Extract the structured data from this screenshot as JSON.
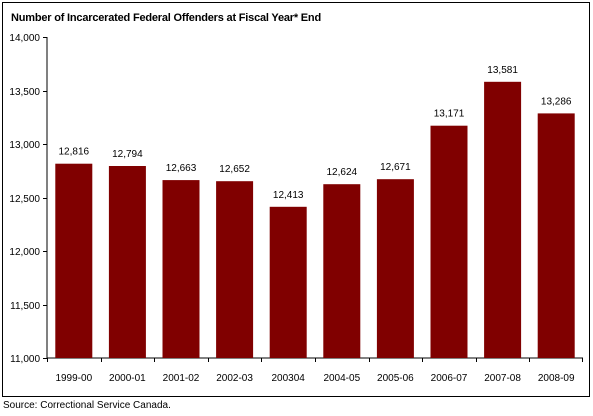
{
  "chart_data": {
    "type": "bar",
    "title": "Number of Incarcerated Federal Offenders at Fiscal Year* End",
    "xlabel": "",
    "ylabel": "",
    "categories": [
      "1999-00",
      "2000-01",
      "2001-02",
      "2002-03",
      "2003-04",
      "2004-05",
      "2005-06",
      "2006-07",
      "2007-08",
      "2008-09"
    ],
    "category_labels": [
      "1999-00",
      "2000-01",
      "2001-02",
      "2002-03",
      "200304",
      "2004-05",
      "2005-06",
      "2006-07",
      "2007-08",
      "2008-09"
    ],
    "values": [
      12816,
      12794,
      12663,
      12652,
      12413,
      12624,
      12671,
      13171,
      13581,
      13286
    ],
    "data_labels": [
      "12,816",
      "12,794",
      "12,663",
      "12,652",
      "12,413",
      "12,624",
      "12,671",
      "13,171",
      "13,581",
      "13,286"
    ],
    "ylim": [
      11000,
      14000
    ],
    "yticks": [
      11000,
      11500,
      12000,
      12500,
      13000,
      13500,
      14000
    ],
    "ytick_labels": [
      "11,000",
      "11,500",
      "12,000",
      "12,500",
      "13,000",
      "13,500",
      "14,000"
    ],
    "bar_color": "#800000",
    "grid": false,
    "legend": "none"
  },
  "source": "Source: Correctional Service Canada."
}
